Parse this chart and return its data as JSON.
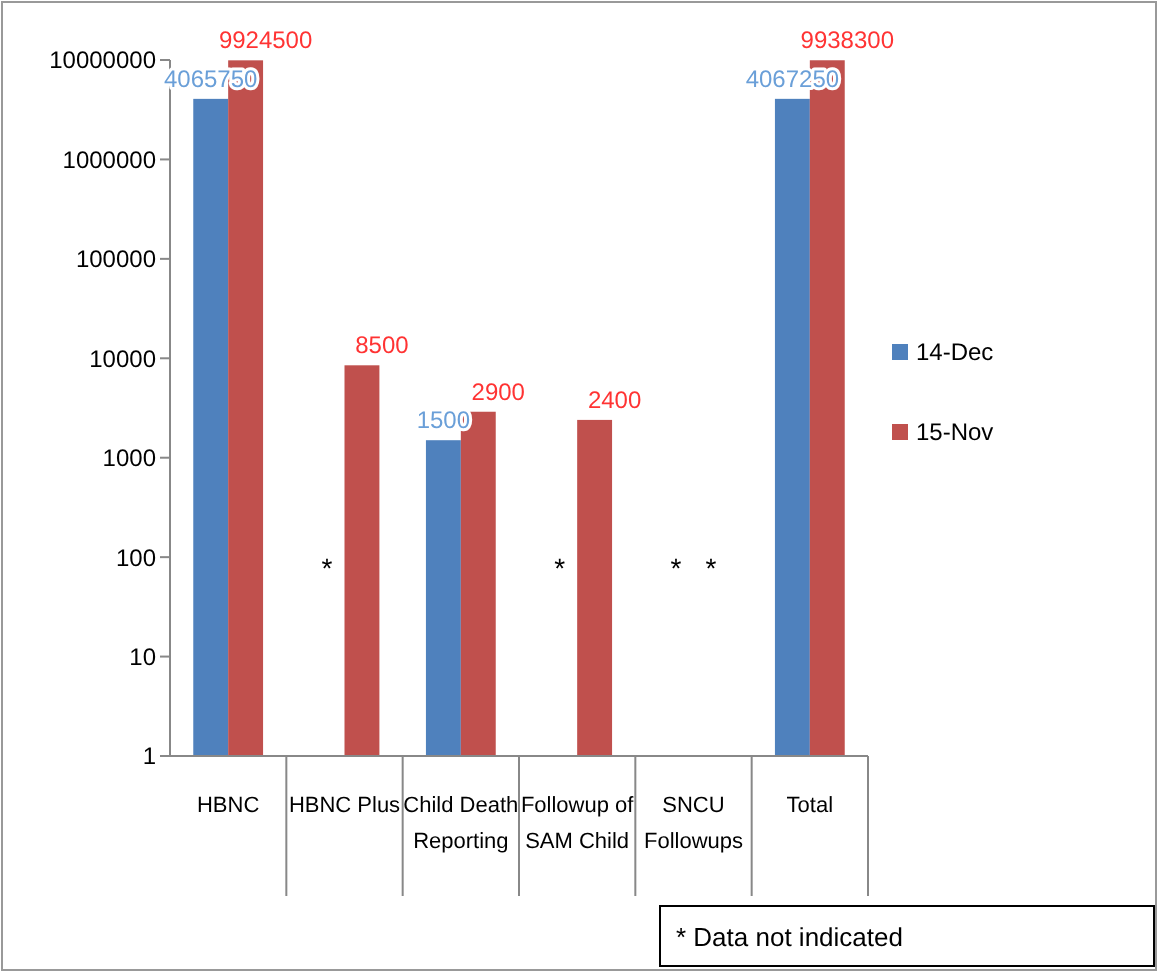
{
  "chart_data": {
    "type": "bar",
    "categories": [
      "HBNC",
      "HBNC Plus",
      "Child Death Reporting",
      "Followup of SAM Child",
      "SNCU Followups",
      "Total"
    ],
    "series": [
      {
        "name": "14-Dec",
        "color": "#4f81bd",
        "values": [
          4065750,
          null,
          1500,
          null,
          null,
          4067250
        ]
      },
      {
        "name": "15-Nov",
        "color": "#c0504d",
        "values": [
          9924500,
          8500,
          2900,
          2400,
          null,
          9938300
        ]
      }
    ],
    "log": true,
    "ylim": [
      1,
      10000000
    ],
    "yticks": [
      1,
      10,
      100,
      1000,
      10000,
      100000,
      1000000,
      10000000
    ],
    "data_labels": true,
    "legend": "right",
    "grid": false,
    "annotations": [
      "*",
      "*",
      "*",
      "*",
      "* Data not indicated"
    ]
  }
}
